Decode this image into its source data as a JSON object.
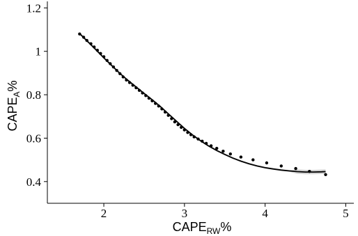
{
  "chart_data": {
    "type": "scatter",
    "title": "",
    "xlabel": {
      "base": "CAPE",
      "sub": "RW",
      "suffix": "%"
    },
    "ylabel": {
      "base": "CAPE",
      "sub": "A",
      "suffix": "%"
    },
    "xlim": [
      1.3,
      5.1
    ],
    "ylim": [
      0.3,
      1.23
    ],
    "x_ticks": [
      2,
      3,
      4,
      5
    ],
    "y_ticks": [
      0.4,
      0.6,
      0.8,
      1,
      1.2
    ],
    "x_tick_labels": [
      "2",
      "3",
      "4",
      "5"
    ],
    "y_tick_labels": [
      "0.4",
      "0.6",
      "0.8",
      "1",
      "1.2"
    ],
    "grid": false,
    "legend": "none",
    "colors": {
      "points": "#000000",
      "fit_line": "#000000",
      "band": "#bdbdbd"
    },
    "series": [
      {
        "kind": "points",
        "x": [
          1.7,
          1.75,
          1.79,
          1.84,
          1.88,
          1.92,
          1.96,
          2.0,
          2.04,
          2.08,
          2.12,
          2.16,
          2.2,
          2.24,
          2.28,
          2.32,
          2.36,
          2.4,
          2.44,
          2.48,
          2.52,
          2.56,
          2.6,
          2.64,
          2.68,
          2.72,
          2.76,
          2.8,
          2.84,
          2.88,
          2.92,
          2.96,
          3.0,
          3.04,
          3.08,
          3.12,
          3.17,
          3.22,
          3.27,
          3.33,
          3.4,
          3.48,
          3.57,
          3.7,
          3.85,
          4.02,
          4.2,
          4.38,
          4.55,
          4.75
        ],
        "y": [
          1.08,
          1.065,
          1.05,
          1.035,
          1.02,
          1.005,
          0.99,
          0.975,
          0.958,
          0.943,
          0.928,
          0.912,
          0.897,
          0.882,
          0.868,
          0.856,
          0.844,
          0.832,
          0.82,
          0.808,
          0.796,
          0.784,
          0.772,
          0.76,
          0.748,
          0.735,
          0.72,
          0.705,
          0.69,
          0.675,
          0.662,
          0.65,
          0.638,
          0.626,
          0.616,
          0.606,
          0.596,
          0.586,
          0.576,
          0.565,
          0.553,
          0.54,
          0.527,
          0.513,
          0.5,
          0.486,
          0.472,
          0.46,
          0.447,
          0.432
        ]
      },
      {
        "kind": "smooth-fit",
        "x": [
          1.7,
          1.8,
          1.9,
          2.0,
          2.1,
          2.2,
          2.3,
          2.4,
          2.5,
          2.6,
          2.7,
          2.8,
          2.9,
          3.0,
          3.1,
          3.2,
          3.3,
          3.4,
          3.5,
          3.6,
          3.7,
          3.8,
          3.9,
          4.0,
          4.1,
          4.2,
          4.3,
          4.4,
          4.5,
          4.6,
          4.7,
          4.75
        ],
        "y": [
          1.082,
          1.045,
          1.008,
          0.97,
          0.934,
          0.898,
          0.866,
          0.836,
          0.806,
          0.777,
          0.746,
          0.712,
          0.678,
          0.645,
          0.615,
          0.588,
          0.564,
          0.543,
          0.525,
          0.508,
          0.494,
          0.482,
          0.472,
          0.464,
          0.458,
          0.453,
          0.449,
          0.446,
          0.444,
          0.444,
          0.445,
          0.446
        ]
      }
    ]
  }
}
